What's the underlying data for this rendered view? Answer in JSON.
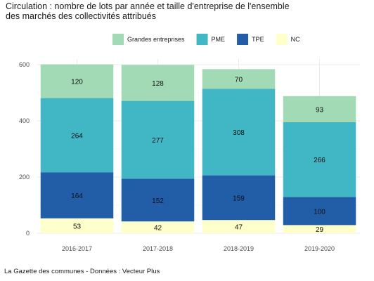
{
  "title_lines": [
    "Circulation : nombre de lots par année et taille d'entreprise de l'ensemble",
    "des marchés des collectivités attribués"
  ],
  "caption": "La Gazette des communes - Données : Vecteur Plus",
  "chart_data": {
    "type": "bar",
    "stacked": true,
    "categories": [
      "2016-2017",
      "2017-2018",
      "2018-2019",
      "2019-2020"
    ],
    "series": [
      {
        "name": "NC",
        "color": "#ffffcc",
        "values": [
          53,
          42,
          47,
          29
        ]
      },
      {
        "name": "TPE",
        "color": "#225ea8",
        "values": [
          164,
          152,
          159,
          100
        ]
      },
      {
        "name": "PME",
        "color": "#41b6c4",
        "values": [
          264,
          277,
          308,
          266
        ]
      },
      {
        "name": "Grandes entreprises",
        "color": "#a1dab4",
        "values": [
          120,
          128,
          70,
          93
        ]
      }
    ],
    "legend_order": [
      "Grandes entreprises",
      "PME",
      "TPE",
      "NC"
    ],
    "legend_position": "top",
    "yticks": [
      0,
      200,
      400,
      600
    ],
    "ylim": [
      0,
      620
    ],
    "xlabel": "",
    "ylabel": "",
    "grid": true
  }
}
